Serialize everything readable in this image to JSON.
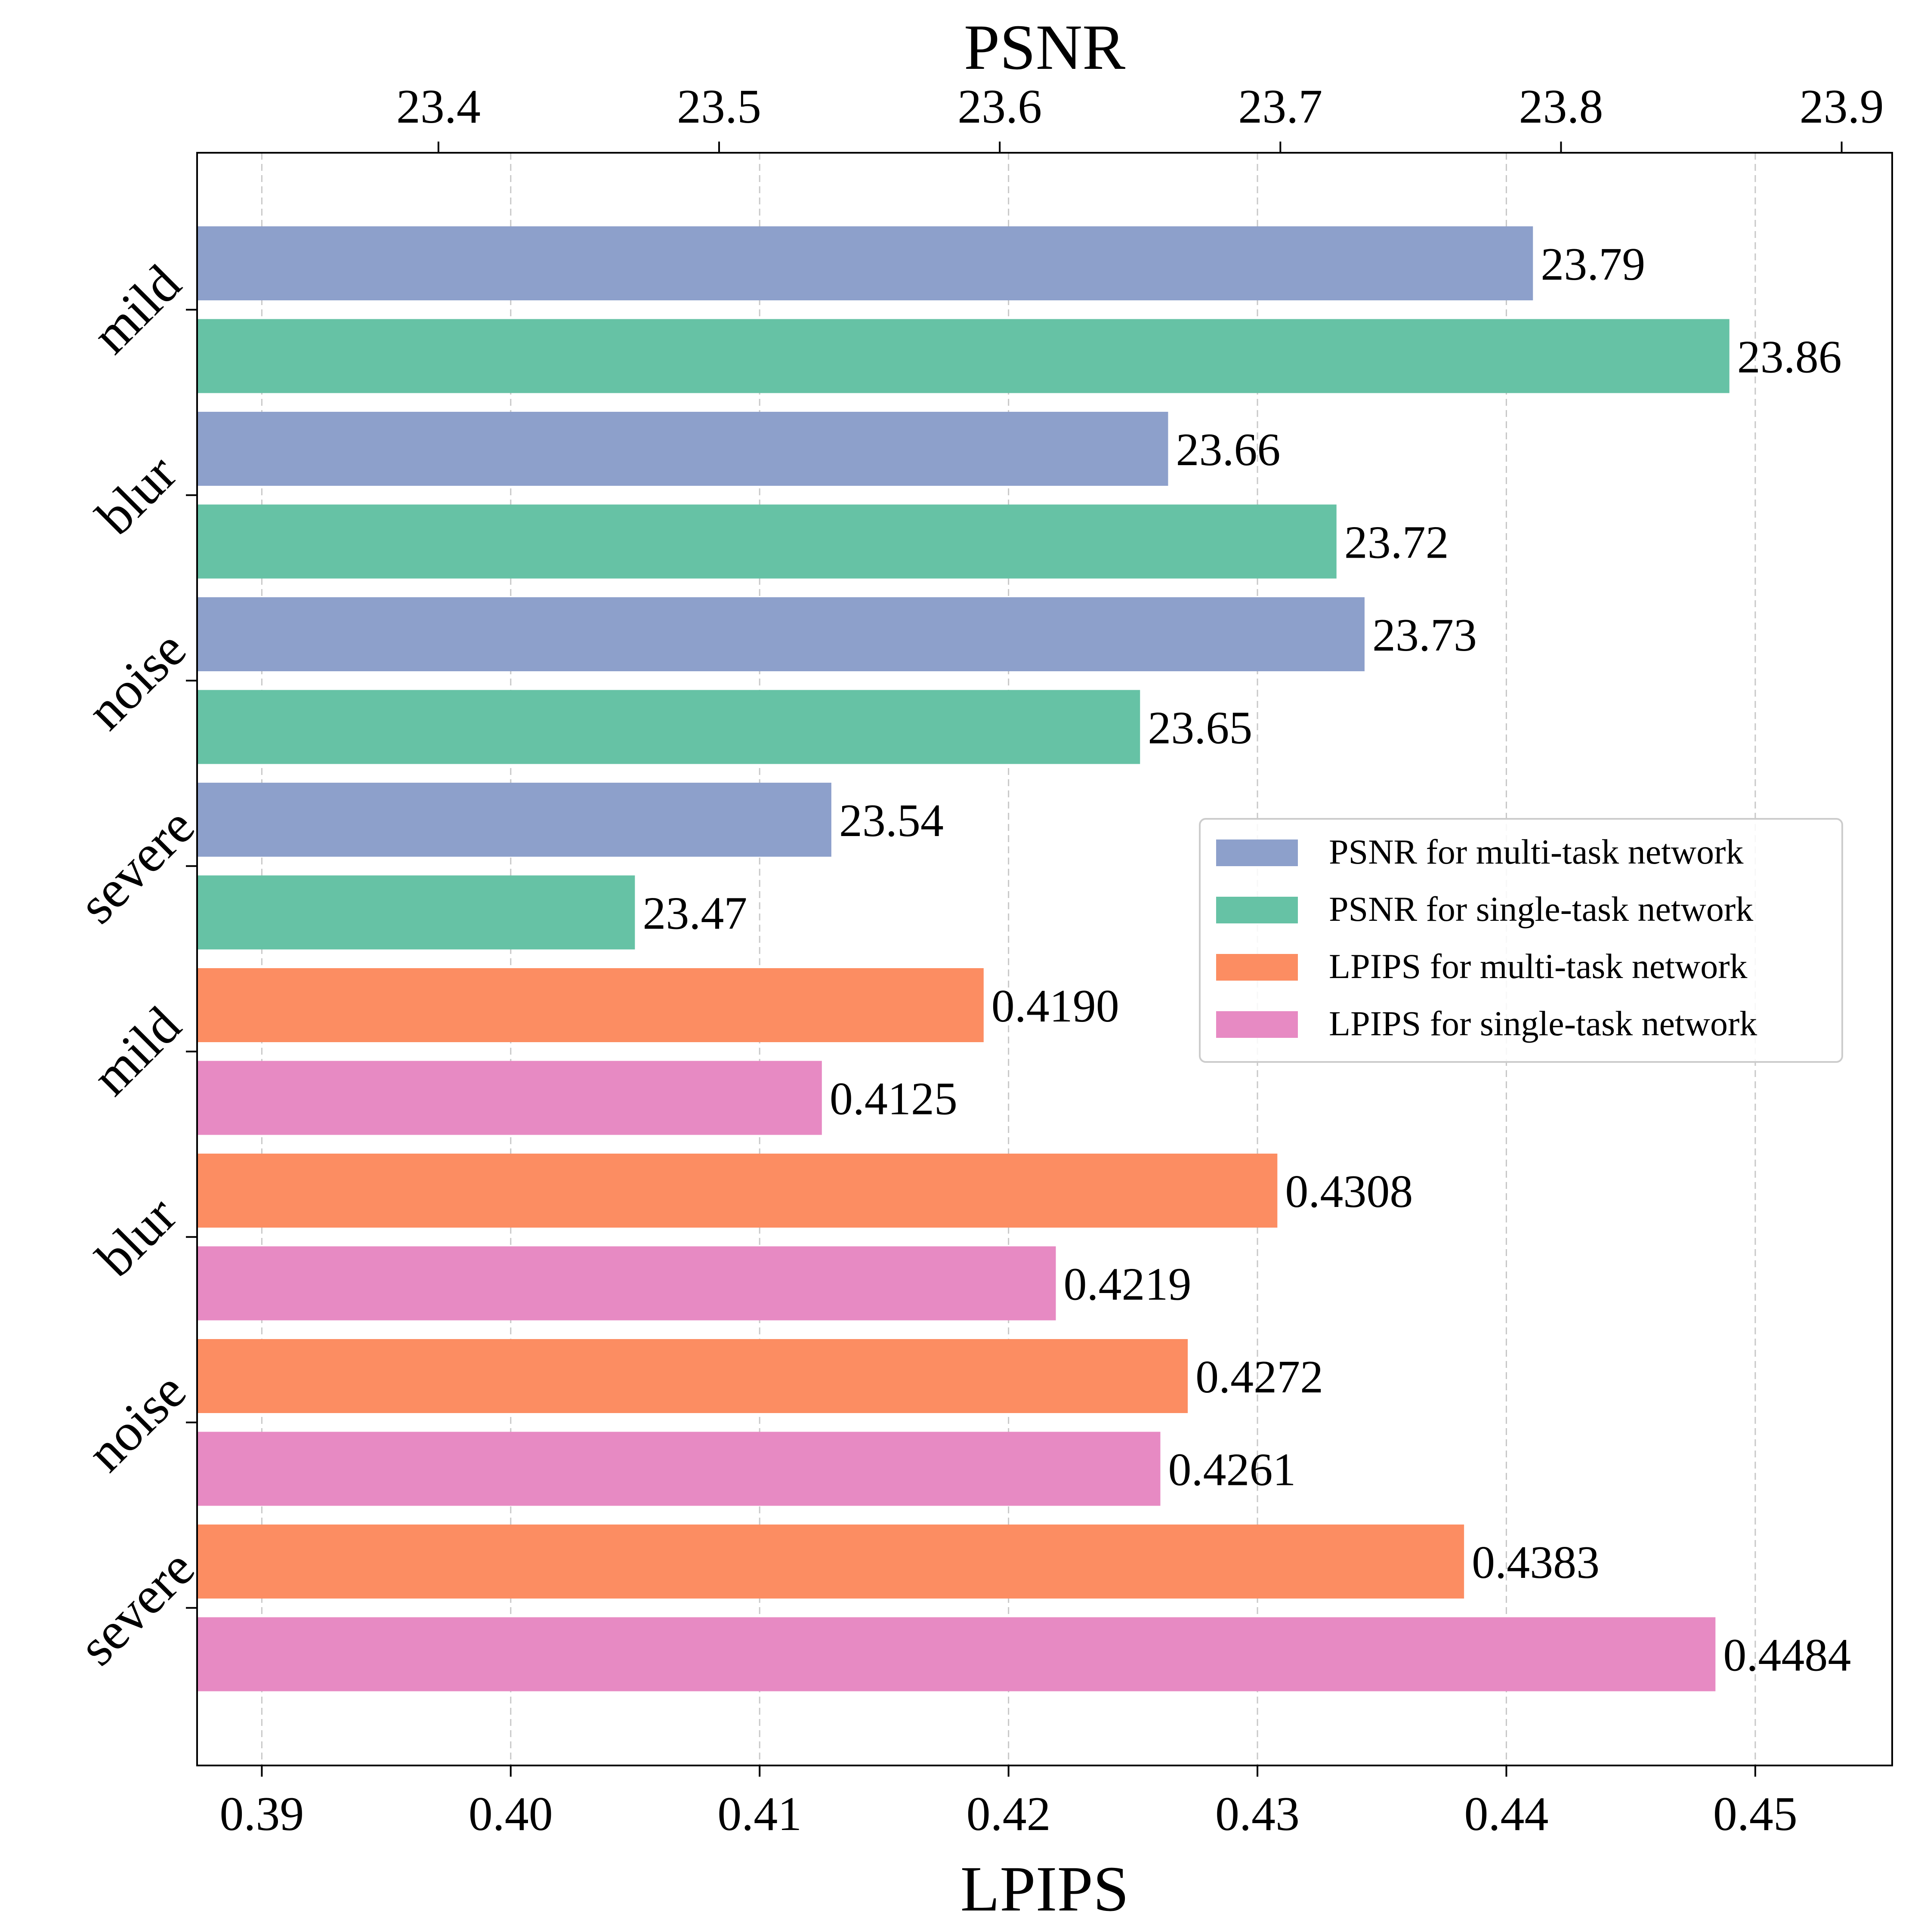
{
  "chart_data": {
    "type": "bar",
    "orientation": "horizontal",
    "top_axis": {
      "label": "PSNR",
      "ticks": [
        "23.4",
        "23.5",
        "23.6",
        "23.7",
        "23.8",
        "23.9"
      ],
      "range": [
        23.314,
        23.918
      ]
    },
    "bottom_axis": {
      "label": "LPIPS",
      "ticks": [
        "0.39",
        "0.40",
        "0.41",
        "0.42",
        "0.43",
        "0.44",
        "0.45"
      ],
      "range": [
        0.3874,
        0.4555
      ]
    },
    "grid": "vertical-dashed",
    "legend_position": "right",
    "groups": [
      {
        "name": "mild",
        "metric": "psnr"
      },
      {
        "name": "blur",
        "metric": "psnr"
      },
      {
        "name": "noise",
        "metric": "psnr"
      },
      {
        "name": "severe",
        "metric": "psnr"
      },
      {
        "name": "mild",
        "metric": "lpips"
      },
      {
        "name": "blur",
        "metric": "lpips"
      },
      {
        "name": "noise",
        "metric": "lpips"
      },
      {
        "name": "severe",
        "metric": "lpips"
      }
    ],
    "series": [
      {
        "name": "PSNR for multi-task network",
        "metric": "psnr",
        "color": "#8da0cb",
        "values": [
          23.79,
          23.66,
          23.73,
          23.54
        ],
        "labels": [
          "23.79",
          "23.66",
          "23.73",
          "23.54"
        ]
      },
      {
        "name": "PSNR for single-task network",
        "metric": "psnr",
        "color": "#66c2a5",
        "values": [
          23.86,
          23.72,
          23.65,
          23.47
        ],
        "labels": [
          "23.86",
          "23.72",
          "23.65",
          "23.47"
        ]
      },
      {
        "name": "LPIPS for multi-task network",
        "metric": "lpips",
        "color": "#fc8d62",
        "values": [
          0.419,
          0.4308,
          0.4272,
          0.4383
        ],
        "labels": [
          "0.4190",
          "0.4308",
          "0.4272",
          "0.4383"
        ]
      },
      {
        "name": "LPIPS for single-task network",
        "metric": "lpips",
        "color": "#e78ac3",
        "values": [
          0.4125,
          0.4219,
          0.4261,
          0.4484
        ],
        "labels": [
          "0.4125",
          "0.4219",
          "0.4261",
          "0.4484"
        ]
      }
    ]
  }
}
